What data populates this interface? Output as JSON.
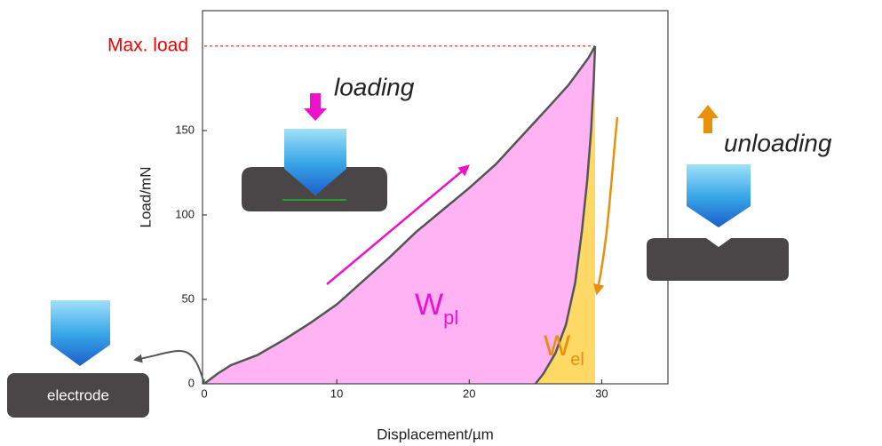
{
  "chart_data": {
    "type": "line",
    "x_label": "Displacement/µm",
    "y_label": "Load/mN",
    "xlim": [
      0,
      35
    ],
    "ylim": [
      0,
      221
    ],
    "xticks": [
      0,
      10,
      20,
      30
    ],
    "yticks": [
      0,
      50,
      100,
      150
    ],
    "series": [
      {
        "color": "#555555",
        "x": [
          0,
          1,
          2,
          4,
          6,
          8,
          10,
          12,
          14,
          16,
          18,
          20,
          22,
          24,
          26,
          27.5,
          29,
          29.5
        ],
        "values": [
          0,
          6,
          11,
          17,
          26,
          36,
          47,
          61,
          75,
          90,
          103,
          116,
          130,
          147,
          164,
          177,
          193,
          200
        ]
      },
      {
        "color": "#555555",
        "x": [
          29.5,
          29.4,
          29.2,
          28.9,
          28.5,
          28,
          27.3,
          26.5,
          25.6,
          25
        ],
        "values": [
          200,
          180,
          150,
          120,
          90,
          60,
          35,
          18,
          6,
          0
        ]
      }
    ],
    "max_load": 200,
    "max_load_label": "Max. load",
    "loading_label": "loading",
    "unloading_label": "unloading",
    "plastic_work_label": "W",
    "plastic_work_subscript": "pl",
    "elastic_work_label": "W",
    "elastic_work_subscript": "el",
    "electrode_label": "electrode"
  }
}
